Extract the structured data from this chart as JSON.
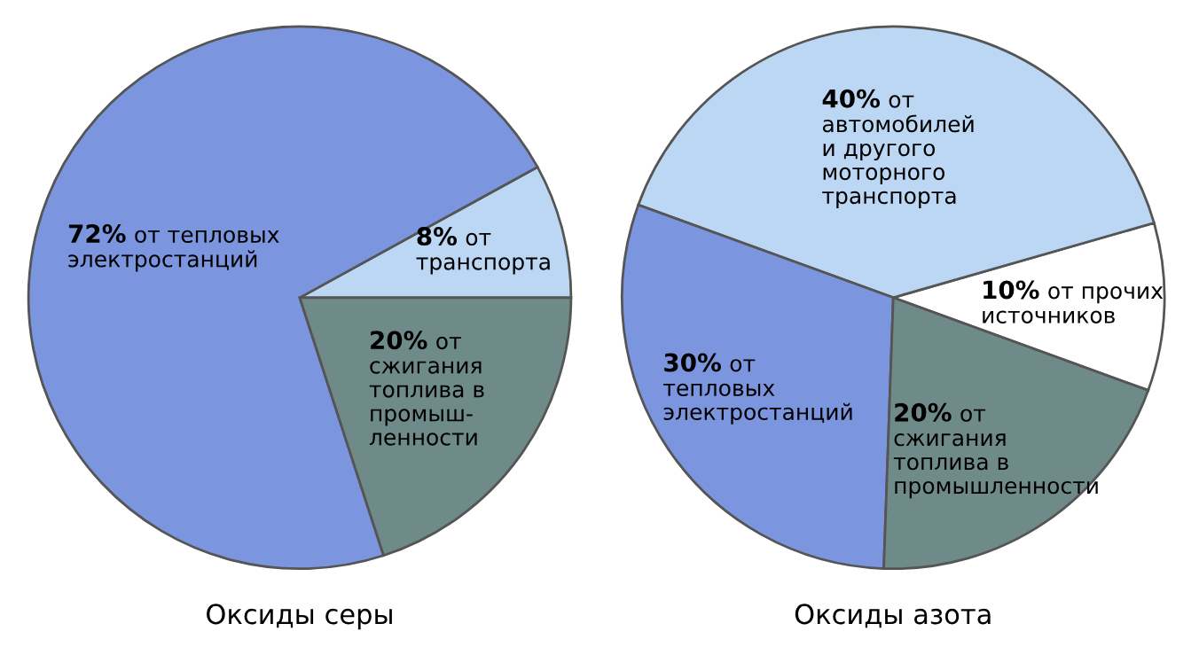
{
  "chart_data": [
    {
      "type": "pie",
      "title": "Оксиды серы",
      "categories": [
        "от\nтранспорта",
        "от тепловых\nэлектростанций",
        "от\nсжигания\nтоплива в\nпромыш-\nленности"
      ],
      "values": [
        8,
        72,
        20
      ],
      "value_labels": [
        "8%",
        "72%",
        "20%"
      ],
      "colors": [
        "#bcd7f3",
        "#7b95de",
        "#6f8b89"
      ]
    },
    {
      "type": "pie",
      "title": "Оксиды азота",
      "categories": [
        "от прочих\nисточников",
        "от\nавтомобилей\nи другого\nмоторного\nтранспорта",
        "от\nтепловых\nэлектростанций",
        "от\nсжигания\nтоплива в\nпромышленности"
      ],
      "values": [
        10,
        40,
        30,
        20
      ],
      "value_labels": [
        "10%",
        "40%",
        "30%",
        "20%"
      ],
      "colors": [
        "#ffffff",
        "#bcd7f3",
        "#7b95de",
        "#6f8b89"
      ]
    }
  ]
}
